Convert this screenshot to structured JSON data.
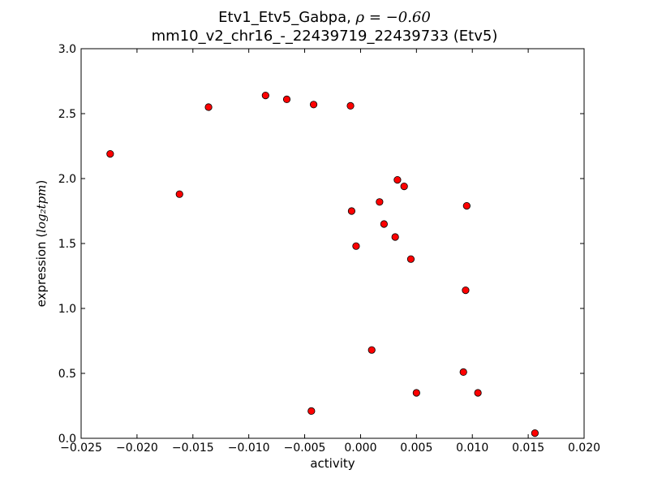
{
  "chart_data": {
    "type": "scatter",
    "title_prefix": "Etv1_Etv5_Gabpa, ",
    "title_rho": "ρ = −0.60",
    "subtitle": "mm10_v2_chr16_-_22439719_22439733 (Etv5)",
    "xlabel": "activity",
    "ylabel_prefix": "expression (",
    "ylabel_math": "log₂tpm",
    "ylabel_suffix": ")",
    "xlim": [
      -0.025,
      0.02
    ],
    "ylim": [
      0.0,
      3.0
    ],
    "xticks": [
      -0.025,
      -0.02,
      -0.015,
      -0.01,
      -0.005,
      0.0,
      0.005,
      0.01,
      0.015,
      0.02
    ],
    "xtick_labels": [
      "−0.025",
      "−0.020",
      "−0.015",
      "−0.010",
      "−0.005",
      "0.000",
      "0.005",
      "0.010",
      "0.015",
      "0.020"
    ],
    "yticks": [
      0.0,
      0.5,
      1.0,
      1.5,
      2.0,
      2.5,
      3.0
    ],
    "ytick_labels": [
      "0.0",
      "0.5",
      "1.0",
      "1.5",
      "2.0",
      "2.5",
      "3.0"
    ],
    "grid": false,
    "marker_color": "#ff0000",
    "marker_edge": "#000000",
    "points": [
      {
        "x": -0.0224,
        "y": 2.19
      },
      {
        "x": -0.0162,
        "y": 1.88
      },
      {
        "x": -0.0136,
        "y": 2.55
      },
      {
        "x": -0.0085,
        "y": 2.64
      },
      {
        "x": -0.0066,
        "y": 2.61
      },
      {
        "x": -0.0042,
        "y": 2.57
      },
      {
        "x": -0.0009,
        "y": 2.56
      },
      {
        "x": -0.0008,
        "y": 1.75
      },
      {
        "x": -0.0004,
        "y": 1.48
      },
      {
        "x": 0.0017,
        "y": 1.82
      },
      {
        "x": 0.0021,
        "y": 1.65
      },
      {
        "x": 0.0033,
        "y": 1.99
      },
      {
        "x": 0.0039,
        "y": 1.94
      },
      {
        "x": 0.0031,
        "y": 1.55
      },
      {
        "x": 0.0045,
        "y": 1.38
      },
      {
        "x": 0.0095,
        "y": 1.79
      },
      {
        "x": 0.0094,
        "y": 1.14
      },
      {
        "x": 0.001,
        "y": 0.68
      },
      {
        "x": 0.0092,
        "y": 0.51
      },
      {
        "x": 0.005,
        "y": 0.35
      },
      {
        "x": 0.0105,
        "y": 0.35
      },
      {
        "x": -0.0044,
        "y": 0.21
      },
      {
        "x": 0.0156,
        "y": 0.04
      }
    ]
  }
}
